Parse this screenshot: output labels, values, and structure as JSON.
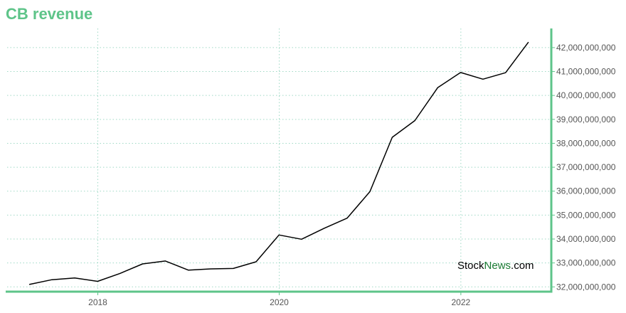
{
  "title": "CB revenue",
  "watermark": {
    "part1": "Stock",
    "part2": "News",
    "part3": ".com"
  },
  "colors": {
    "title": "#5ec489",
    "axis": "#5ec489",
    "grid": "#9fd9c5",
    "line": "#000000",
    "watermark_accent": "#1a7a33"
  },
  "chart_data": {
    "type": "line",
    "title": "CB revenue",
    "xlabel": "",
    "ylabel": "",
    "x_ticks": [
      "2018",
      "2020",
      "2022"
    ],
    "y_ticks": [
      "32,000,000,000",
      "33,000,000,000",
      "34,000,000,000",
      "35,000,000,000",
      "36,000,000,000",
      "37,000,000,000",
      "38,000,000,000",
      "39,000,000,000",
      "40,000,000,000",
      "41,000,000,000",
      "42,000,000,000"
    ],
    "ylim": [
      31800000000,
      42800000000
    ],
    "xlim": [
      "2017-01-01",
      "2022-12-31"
    ],
    "y_axis_position": "right",
    "grid": true,
    "x": [
      "2017-03-31",
      "2017-06-30",
      "2017-09-30",
      "2017-12-31",
      "2018-03-31",
      "2018-06-30",
      "2018-09-30",
      "2018-12-31",
      "2019-03-31",
      "2019-06-30",
      "2019-09-30",
      "2019-12-31",
      "2020-03-31",
      "2020-06-30",
      "2020-09-30",
      "2020-12-31",
      "2021-03-31",
      "2021-06-30",
      "2021-09-30",
      "2021-12-31",
      "2022-03-31",
      "2022-06-30",
      "2022-09-30"
    ],
    "values": [
      32100000000,
      32300000000,
      32370000000,
      32230000000,
      32560000000,
      32960000000,
      33080000000,
      32700000000,
      32750000000,
      32770000000,
      33050000000,
      34170000000,
      33990000000,
      34450000000,
      34870000000,
      35980000000,
      38250000000,
      38950000000,
      40330000000,
      40960000000,
      40680000000,
      40950000000,
      42230000000
    ]
  }
}
